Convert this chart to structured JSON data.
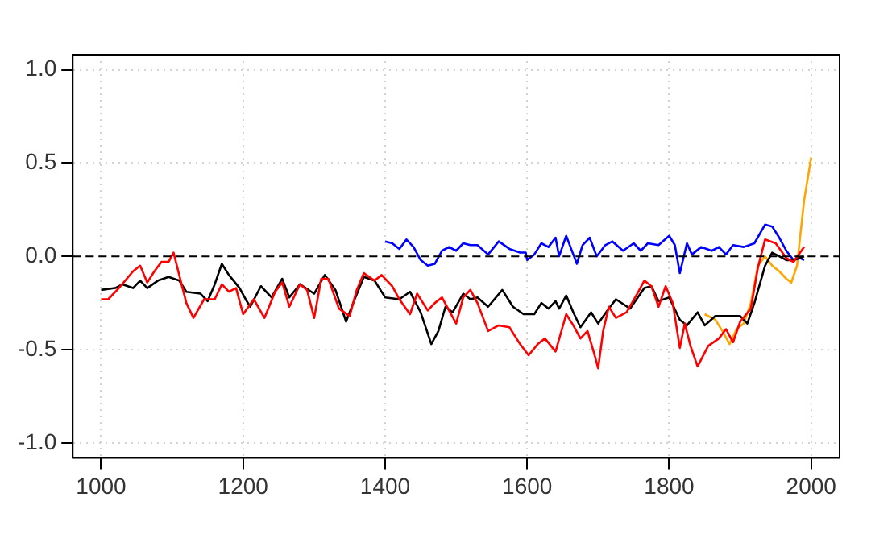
{
  "chart_data": {
    "type": "line",
    "xlim": [
      960,
      2040
    ],
    "ylim": [
      -1.08,
      1.08
    ],
    "xticks": [
      1000,
      1200,
      1400,
      1600,
      1800,
      2000
    ],
    "yticks": [
      {
        "value": -1,
        "label": "-1.0"
      },
      -0.5,
      {
        "value": 0,
        "label": "0.0"
      },
      0.5,
      {
        "value": 1,
        "label": "1.0"
      }
    ],
    "grid": true,
    "legend": false,
    "marker": "none",
    "line_style": "solid",
    "ref_lines": [
      {
        "axis": "y",
        "value": 0,
        "color": "#000000",
        "line_style": "dashed"
      }
    ],
    "series": [
      {
        "color": "#ff0000",
        "x": [
          1000,
          1010,
          1025,
          1045,
          1055,
          1065,
          1075,
          1085,
          1095,
          1102,
          1110,
          1120,
          1130,
          1145,
          1160,
          1170,
          1180,
          1190,
          1200,
          1215,
          1230,
          1245,
          1255,
          1265,
          1280,
          1290,
          1300,
          1310,
          1320,
          1335,
          1350,
          1360,
          1370,
          1385,
          1395,
          1410,
          1420,
          1435,
          1445,
          1460,
          1470,
          1480,
          1490,
          1500,
          1510,
          1520,
          1530,
          1545,
          1560,
          1575,
          1590,
          1602,
          1615,
          1625,
          1640,
          1655,
          1665,
          1675,
          1685,
          1695,
          1700,
          1707,
          1715,
          1725,
          1740,
          1755,
          1765,
          1775,
          1785,
          1795,
          1805,
          1815,
          1822,
          1830,
          1840,
          1855,
          1870,
          1880,
          1890,
          1900,
          1915,
          1925,
          1935,
          1950,
          1965,
          1975,
          1990
        ],
        "values": [
          -0.23,
          -0.23,
          -0.17,
          -0.08,
          -0.05,
          -0.14,
          -0.08,
          -0.03,
          -0.03,
          0.02,
          -0.1,
          -0.25,
          -0.33,
          -0.23,
          -0.23,
          -0.15,
          -0.19,
          -0.17,
          -0.31,
          -0.23,
          -0.33,
          -0.19,
          -0.14,
          -0.27,
          -0.15,
          -0.18,
          -0.33,
          -0.12,
          -0.12,
          -0.28,
          -0.32,
          -0.18,
          -0.09,
          -0.13,
          -0.1,
          -0.16,
          -0.23,
          -0.31,
          -0.2,
          -0.29,
          -0.25,
          -0.22,
          -0.29,
          -0.36,
          -0.22,
          -0.18,
          -0.25,
          -0.4,
          -0.37,
          -0.38,
          -0.47,
          -0.53,
          -0.47,
          -0.44,
          -0.51,
          -0.31,
          -0.37,
          -0.44,
          -0.4,
          -0.53,
          -0.6,
          -0.4,
          -0.27,
          -0.33,
          -0.3,
          -0.2,
          -0.13,
          -0.16,
          -0.27,
          -0.16,
          -0.25,
          -0.49,
          -0.36,
          -0.48,
          -0.59,
          -0.48,
          -0.44,
          -0.39,
          -0.46,
          -0.35,
          -0.28,
          -0.06,
          0.09,
          0.07,
          -0.01,
          -0.03,
          0.05
        ]
      },
      {
        "color": "#000000",
        "x": [
          1000,
          1020,
          1030,
          1045,
          1055,
          1065,
          1080,
          1095,
          1110,
          1120,
          1140,
          1150,
          1160,
          1170,
          1180,
          1195,
          1205,
          1210,
          1225,
          1240,
          1255,
          1265,
          1280,
          1300,
          1315,
          1330,
          1345,
          1355,
          1370,
          1385,
          1400,
          1420,
          1435,
          1450,
          1465,
          1475,
          1485,
          1495,
          1510,
          1520,
          1530,
          1545,
          1565,
          1580,
          1595,
          1610,
          1620,
          1630,
          1640,
          1645,
          1655,
          1665,
          1675,
          1690,
          1700,
          1715,
          1725,
          1745,
          1765,
          1775,
          1785,
          1800,
          1815,
          1825,
          1840,
          1850,
          1865,
          1885,
          1900,
          1910,
          1920,
          1935,
          1945,
          1955,
          1965,
          1975,
          1990
        ],
        "values": [
          -0.18,
          -0.17,
          -0.15,
          -0.17,
          -0.13,
          -0.17,
          -0.13,
          -0.11,
          -0.13,
          -0.19,
          -0.2,
          -0.24,
          -0.15,
          -0.04,
          -0.1,
          -0.17,
          -0.24,
          -0.27,
          -0.16,
          -0.22,
          -0.12,
          -0.22,
          -0.15,
          -0.2,
          -0.1,
          -0.18,
          -0.35,
          -0.25,
          -0.11,
          -0.13,
          -0.22,
          -0.23,
          -0.19,
          -0.3,
          -0.47,
          -0.4,
          -0.27,
          -0.3,
          -0.2,
          -0.23,
          -0.22,
          -0.27,
          -0.18,
          -0.27,
          -0.31,
          -0.31,
          -0.25,
          -0.28,
          -0.24,
          -0.28,
          -0.21,
          -0.3,
          -0.38,
          -0.3,
          -0.36,
          -0.28,
          -0.23,
          -0.28,
          -0.17,
          -0.16,
          -0.24,
          -0.22,
          -0.34,
          -0.37,
          -0.3,
          -0.37,
          -0.32,
          -0.32,
          -0.32,
          -0.36,
          -0.25,
          -0.05,
          0.02,
          0,
          -0.02,
          -0.02,
          0
        ]
      },
      {
        "color": "#0000ff",
        "x": [
          1400,
          1410,
          1420,
          1430,
          1440,
          1450,
          1460,
          1470,
          1480,
          1490,
          1500,
          1510,
          1520,
          1530,
          1545,
          1560,
          1575,
          1590,
          1598,
          1600,
          1610,
          1620,
          1630,
          1640,
          1645,
          1655,
          1665,
          1670,
          1678,
          1688,
          1698,
          1710,
          1720,
          1735,
          1750,
          1760,
          1770,
          1785,
          1800,
          1808,
          1815,
          1825,
          1832,
          1845,
          1860,
          1870,
          1880,
          1890,
          1905,
          1920,
          1935,
          1945,
          1955,
          1965,
          1975,
          1985,
          1990
        ],
        "values": [
          0.08,
          0.07,
          0.04,
          0.09,
          0.05,
          -0.02,
          -0.05,
          -0.04,
          0.03,
          0.05,
          0.03,
          0.07,
          0.06,
          0.06,
          0.01,
          0.08,
          0.04,
          0.02,
          0.02,
          -0.02,
          0.01,
          0.07,
          0.05,
          0.1,
          0,
          0.11,
          0.01,
          -0.04,
          0.06,
          0.1,
          0,
          0.06,
          0.08,
          0.03,
          0.07,
          0.03,
          0.07,
          0.06,
          0.11,
          0.06,
          -0.09,
          0.07,
          0.01,
          0.05,
          0.03,
          0.05,
          0.01,
          0.06,
          0.05,
          0.07,
          0.17,
          0.16,
          0.1,
          0.03,
          -0.02,
          -0.01,
          -0.02
        ]
      },
      {
        "color": "#ffa500",
        "x": [
          1850,
          1865,
          1875,
          1885,
          1895,
          1905,
          1915,
          1925,
          1935,
          1945,
          1955,
          1965,
          1972,
          1980,
          1990,
          2000
        ],
        "values": [
          -0.31,
          -0.34,
          -0.4,
          -0.47,
          -0.39,
          -0.36,
          -0.25,
          -0.05,
          0,
          -0.05,
          -0.08,
          -0.12,
          -0.14,
          -0.05,
          0.3,
          0.53
        ]
      }
    ]
  }
}
